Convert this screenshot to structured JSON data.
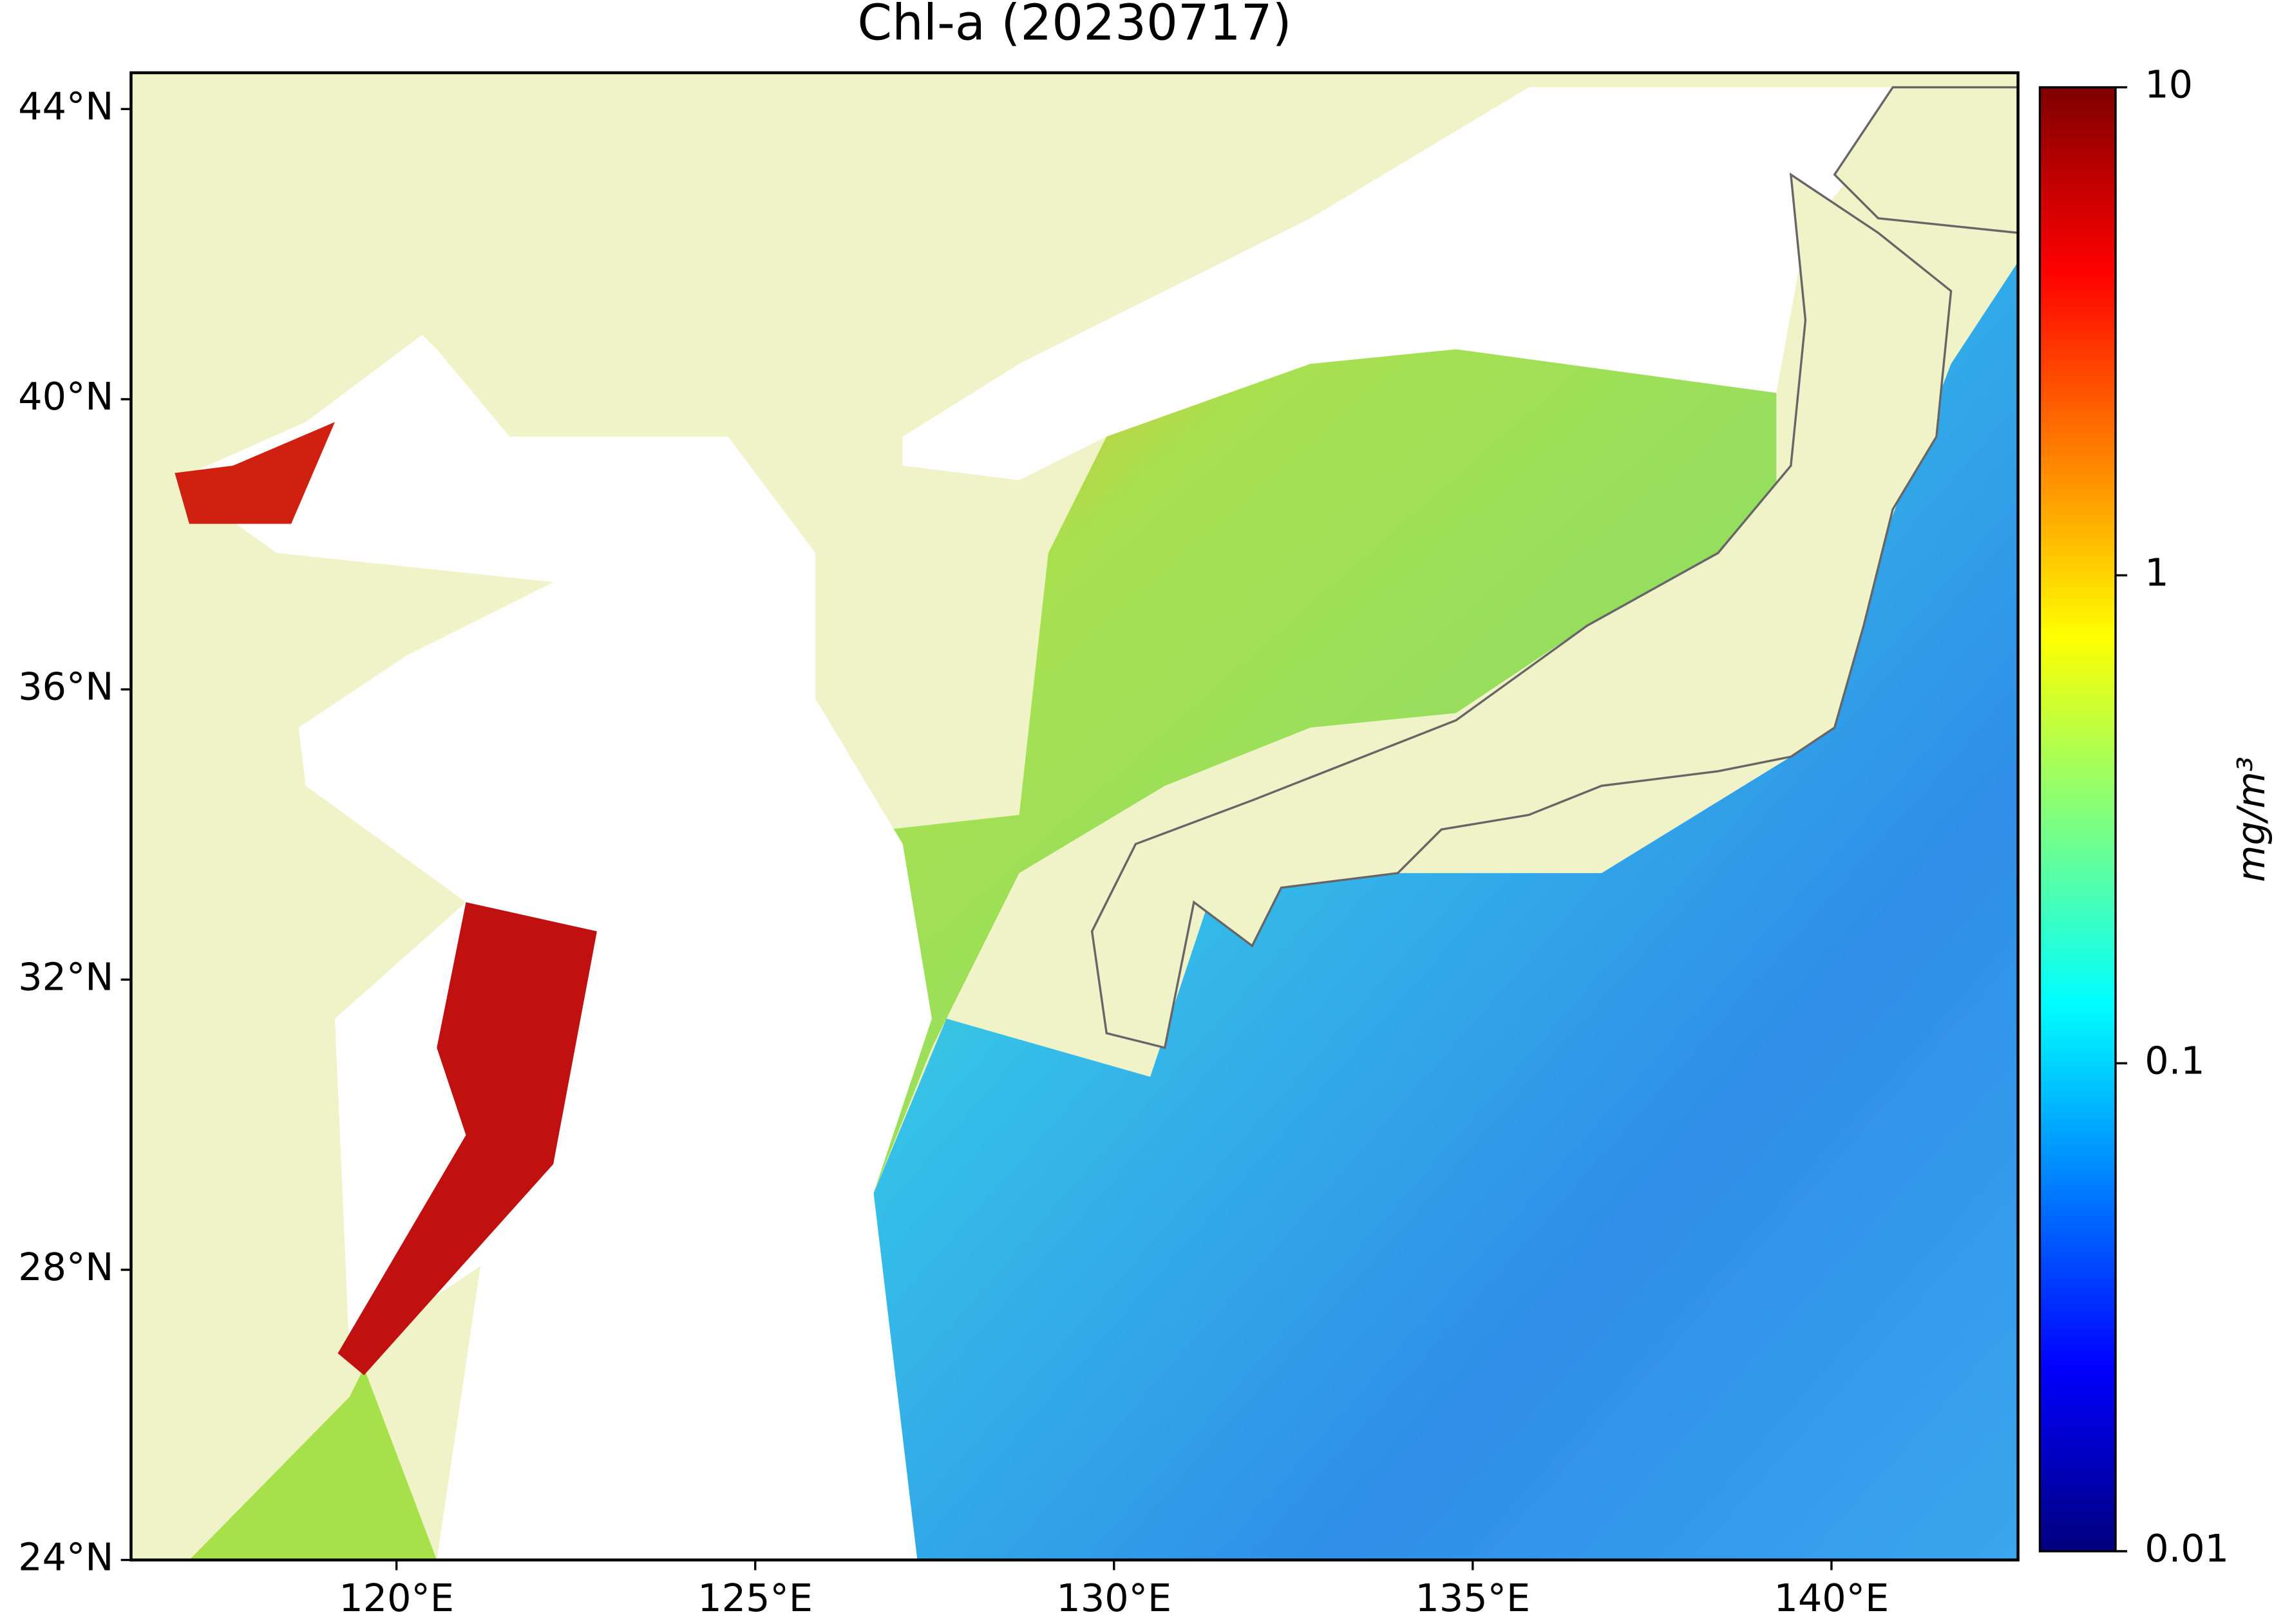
{
  "chart_data": {
    "type": "map",
    "title": "Chl-a (20230717)",
    "xlim": [
      116.3,
      142.6
    ],
    "ylim": [
      24,
      44.5
    ],
    "xticks": [
      {
        "value": 120,
        "label": "120°E"
      },
      {
        "value": 125,
        "label": "125°E"
      },
      {
        "value": 130,
        "label": "130°E"
      },
      {
        "value": 135,
        "label": "135°E"
      },
      {
        "value": 140,
        "label": "140°E"
      }
    ],
    "yticks": [
      {
        "value": 24,
        "label": "24°N"
      },
      {
        "value": 28,
        "label": "28°N"
      },
      {
        "value": 32,
        "label": "32°N"
      },
      {
        "value": 36,
        "label": "36°N"
      },
      {
        "value": 40,
        "label": "40°N"
      },
      {
        "value": 44,
        "label": "44°N"
      }
    ],
    "colorbar": {
      "label": "mg/m³",
      "scale": "log",
      "lim": [
        0.01,
        10
      ],
      "ticks": [
        0.01,
        0.1,
        1,
        10
      ],
      "colormap": "jet"
    }
  }
}
